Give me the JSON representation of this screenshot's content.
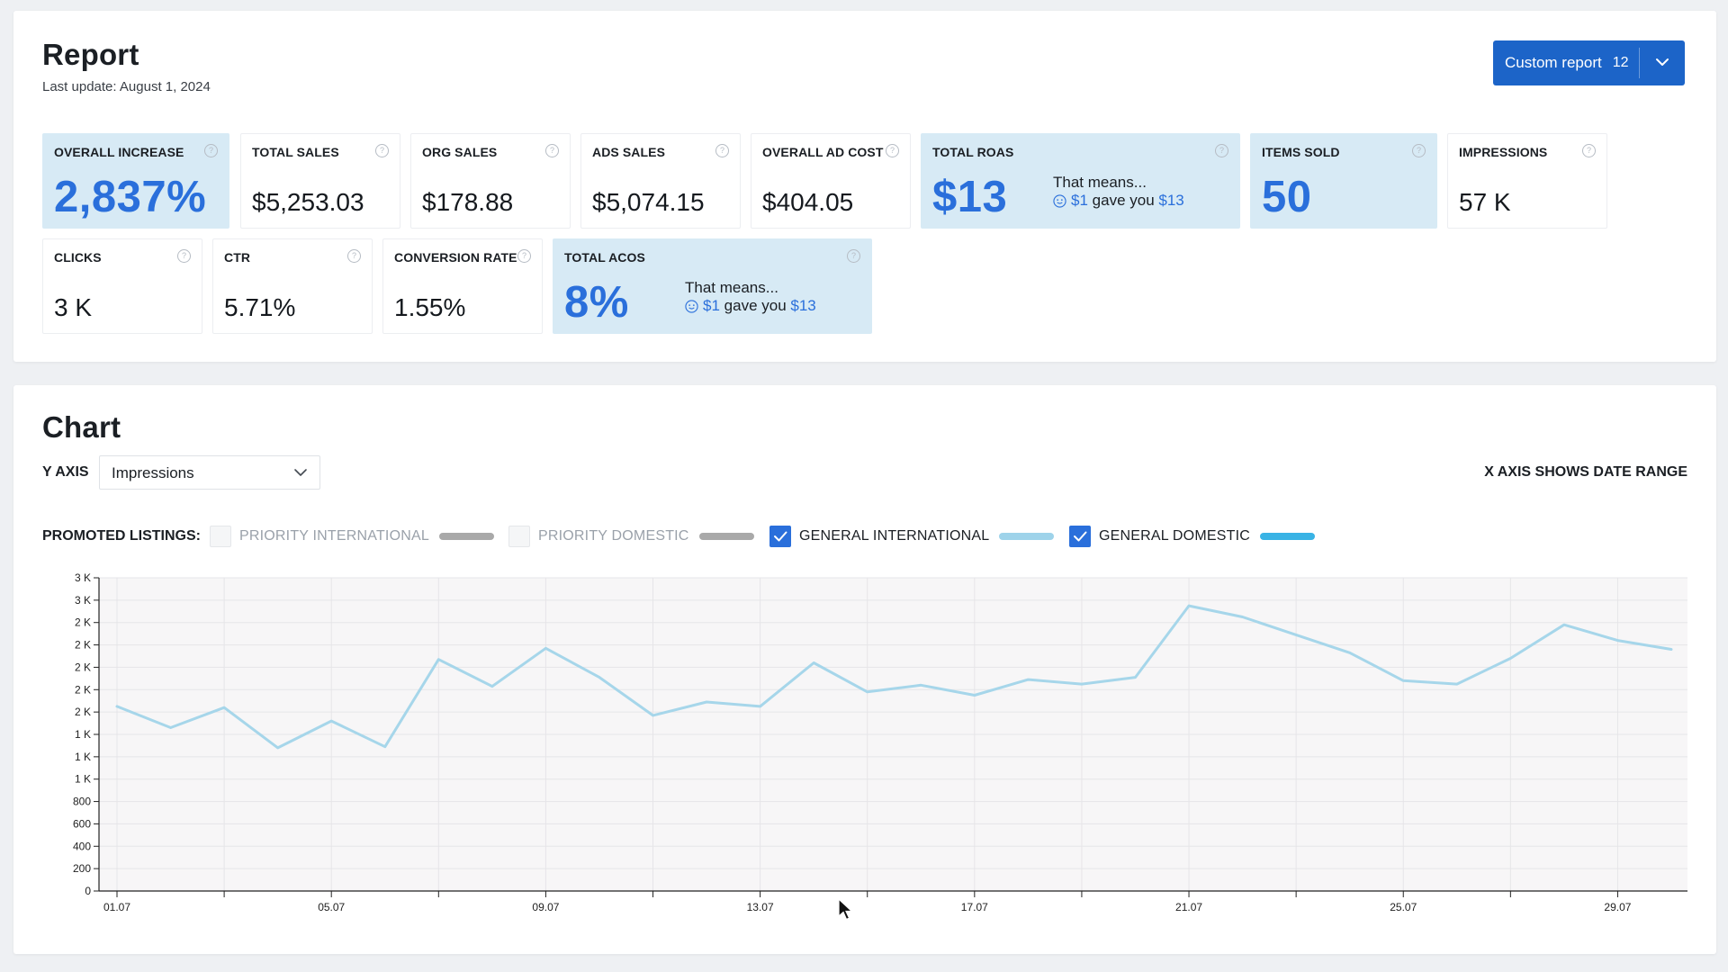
{
  "report": {
    "title": "Report",
    "last_update": "Last update: August 1, 2024",
    "custom_button": {
      "label": "Custom report",
      "count": "12"
    }
  },
  "metrics": {
    "overall_increase": {
      "title": "OVERALL INCREASE",
      "value": "2,837%"
    },
    "total_sales": {
      "title": "TOTAL SALES",
      "value": "$5,253.03"
    },
    "org_sales": {
      "title": "ORG SALES",
      "value": "$178.88"
    },
    "ads_sales": {
      "title": "ADS SALES",
      "value": "$5,074.15"
    },
    "overall_ad_cost": {
      "title": "OVERALL AD COST",
      "value": "$404.05"
    },
    "total_roas": {
      "title": "TOTAL ROAS",
      "value": "$13",
      "means_line1": "That means...",
      "means_from": "$1",
      "means_mid": "gave you",
      "means_to": "$13"
    },
    "items_sold": {
      "title": "ITEMS SOLD",
      "value": "50"
    },
    "impressions": {
      "title": "IMPRESSIONS",
      "value": "57 K"
    },
    "clicks": {
      "title": "CLICKS",
      "value": "3 K"
    },
    "ctr": {
      "title": "CTR",
      "value": "5.71%"
    },
    "conversion_rate": {
      "title": "CONVERSION RATE",
      "value": "1.55%"
    },
    "total_acos": {
      "title": "TOTAL ACOS",
      "value": "8%",
      "means_line1": "That means...",
      "means_from": "$1",
      "means_mid": "gave you",
      "means_to": "$13"
    }
  },
  "chart_section": {
    "title": "Chart",
    "y_axis_label": "Y AXIS",
    "y_axis_selected": "Impressions",
    "x_axis_note": "X AXIS SHOWS DATE RANGE",
    "promoted_label": "PROMOTED LISTINGS:",
    "legend": [
      {
        "label": "PRIORITY INTERNATIONAL",
        "checked": false,
        "color": "#a9a9a9"
      },
      {
        "label": "PRIORITY DOMESTIC",
        "checked": false,
        "color": "#a9a9a9"
      },
      {
        "label": "GENERAL INTERNATIONAL",
        "checked": true,
        "color": "#9ed3ea"
      },
      {
        "label": "GENERAL DOMESTIC",
        "checked": true,
        "color": "#39b3e5"
      }
    ]
  },
  "colors": {
    "accent": "#1c64c8",
    "highlight_card": "#d7eaf5",
    "big_value": "#2a6fdb",
    "series_line": "#a6d6ea"
  },
  "chart_data": {
    "type": "line",
    "x": [
      "01.07",
      "02.07",
      "03.07",
      "04.07",
      "05.07",
      "06.07",
      "07.07",
      "08.07",
      "09.07",
      "10.07",
      "11.07",
      "12.07",
      "13.07",
      "14.07",
      "15.07",
      "16.07",
      "17.07",
      "18.07",
      "19.07",
      "20.07",
      "21.07",
      "22.07",
      "23.07",
      "24.07",
      "25.07",
      "26.07",
      "27.07",
      "28.07",
      "29.07",
      "30.07"
    ],
    "x_tick_labels": [
      "01.07",
      "05.07",
      "09.07",
      "13.07",
      "17.07",
      "21.07",
      "25.07",
      "29.07"
    ],
    "series": [
      {
        "values": [
          1650,
          1460,
          1640,
          1280,
          1520,
          1290,
          2070,
          1830,
          2170,
          1910,
          1570,
          1690,
          1650,
          2040,
          1780,
          1840,
          1750,
          1890,
          1850,
          1910,
          2550,
          2450,
          2290,
          2130,
          1880,
          1850,
          2080,
          2380,
          2240,
          2160
        ]
      }
    ],
    "y_tick_labels": [
      "0",
      "200",
      "400",
      "600",
      "800",
      "1 K",
      "1 K",
      "1 K",
      "2 K",
      "2 K",
      "2 K",
      "2 K",
      "2 K",
      "3 K",
      "3 K"
    ],
    "ylim": [
      0,
      2800
    ],
    "grid": true
  }
}
